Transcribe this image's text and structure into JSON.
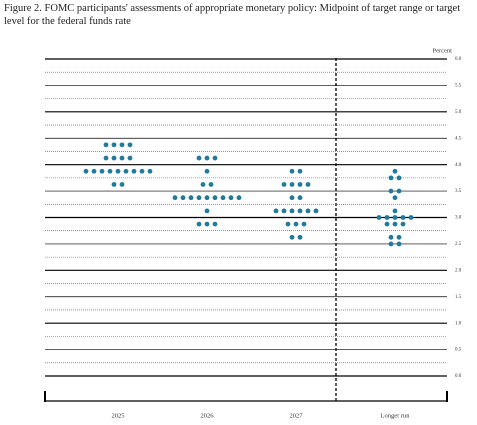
{
  "chart_data": {
    "type": "dot",
    "title": "Figure 2.  FOMC participants' assessments of appropriate monetary policy:  Midpoint of target range or target level for the federal funds rate",
    "y_label": "Percent",
    "categories": [
      "2025",
      "2026",
      "2027",
      "Longer run"
    ],
    "dots": [
      [
        {
          "y": 4.375,
          "count": 4
        },
        {
          "y": 4.125,
          "count": 4
        },
        {
          "y": 3.875,
          "count": 9
        },
        {
          "y": 3.625,
          "count": 2
        }
      ],
      [
        {
          "y": 4.125,
          "count": 3
        },
        {
          "y": 3.875,
          "count": 1
        },
        {
          "y": 3.625,
          "count": 2
        },
        {
          "y": 3.375,
          "count": 9
        },
        {
          "y": 3.125,
          "count": 1
        },
        {
          "y": 2.875,
          "count": 3
        }
      ],
      [
        {
          "y": 3.875,
          "count": 2
        },
        {
          "y": 3.625,
          "count": 4
        },
        {
          "y": 3.375,
          "count": 2
        },
        {
          "y": 3.125,
          "count": 6
        },
        {
          "y": 2.875,
          "count": 3
        },
        {
          "y": 2.625,
          "count": 2
        }
      ],
      [
        {
          "y": 3.875,
          "count": 1
        },
        {
          "y": 3.75,
          "count": 2
        },
        {
          "y": 3.5,
          "count": 2
        },
        {
          "y": 3.375,
          "count": 1
        },
        {
          "y": 3.125,
          "count": 1
        },
        {
          "y": 3.0,
          "count": 5
        },
        {
          "y": 2.875,
          "count": 3
        },
        {
          "y": 2.625,
          "count": 2
        },
        {
          "y": 2.5,
          "count": 2
        }
      ]
    ],
    "color": "#1f7a9c",
    "ylim": [
      0,
      6
    ],
    "yticks": [
      {
        "value": 0,
        "label": "0.0"
      },
      0.5,
      {
        "value": 1,
        "label": "1.0"
      },
      1.5,
      {
        "value": 2,
        "label": "2.0"
      },
      2.5,
      {
        "value": 3,
        "label": "3.0"
      },
      3.5,
      {
        "value": 4,
        "label": "4.0"
      },
      4.5,
      {
        "value": 5,
        "label": "5.0"
      },
      5.5,
      {
        "value": 6,
        "label": "6.0"
      }
    ],
    "minor_yticks": [
      0.25,
      0.75,
      1.25,
      1.75,
      2.25,
      2.75,
      3.25,
      3.75,
      4.25,
      4.75,
      5.25,
      5.75
    ],
    "grid": true
  }
}
